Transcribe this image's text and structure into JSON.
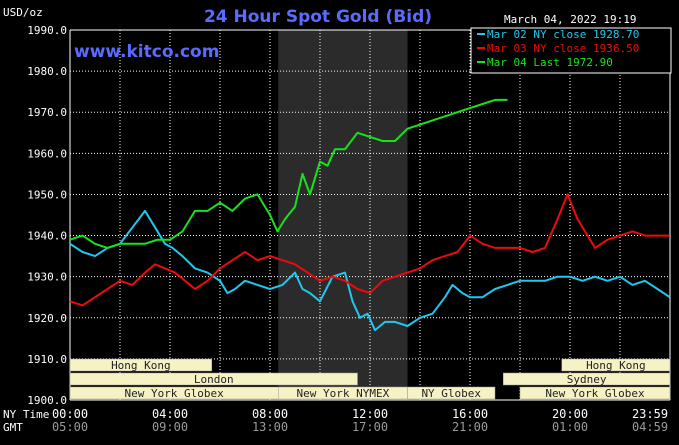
{
  "header": {
    "unit": "USD/oz",
    "title": "24 Hour Spot Gold (Bid)",
    "datetime": "March 04, 2022 19:19",
    "watermark": "www.kitco.com"
  },
  "colors": {
    "background": "#000000",
    "grid": "#ffffff",
    "title": "#5a6bff",
    "nymex_band": "#2b2b2b",
    "market_band": "#f7f2c4",
    "mar02": "#22c7ef",
    "mar03": "#ee0a0a",
    "mar04": "#18e21c"
  },
  "sessions_row1": [
    "Hong Kong",
    "Hong Kong"
  ],
  "sessions_row2": [
    "London",
    "Sydney"
  ],
  "sessions_row3": [
    "New York Globex",
    "New York NYMEX",
    "NY Globex",
    "New York Globex"
  ],
  "axis_labels": {
    "ny_time": "NY Time",
    "gmt": "GMT"
  },
  "chart_data": {
    "type": "line",
    "title": "24 Hour Spot Gold (Bid)",
    "ylabel": "USD/oz",
    "ylim": [
      1900,
      1990
    ],
    "xlim": [
      0,
      24
    ],
    "y_ticks": [
      "1900.0",
      "1910.0",
      "1920.0",
      "1930.0",
      "1940.0",
      "1950.0",
      "1960.0",
      "1970.0",
      "1980.0",
      "1990.0"
    ],
    "x_ticks_ny": [
      "00:00",
      "04:00",
      "08:00",
      "12:00",
      "16:00",
      "20:00",
      "23:59"
    ],
    "x_ticks_gmt": [
      "05:00",
      "09:00",
      "13:00",
      "17:00",
      "21:00",
      "01:00",
      "04:59"
    ],
    "grid": true,
    "legend_position": "top-right",
    "legend": [
      "Mar 02 NY close 1928.70",
      "Mar 03 NY close 1936.50",
      "Mar 04 Last 1972.90"
    ],
    "series": [
      {
        "name": "Mar 02 NY close 1928.70",
        "x": [
          0,
          0.5,
          1,
          1.5,
          2,
          2.5,
          3,
          3.4,
          3.8,
          4.1,
          4.5,
          5,
          5.5,
          6,
          6.3,
          6.6,
          7,
          7.5,
          8,
          8.5,
          9,
          9.3,
          9.6,
          10,
          10.5,
          11,
          11.3,
          11.6,
          11.9,
          12.2,
          12.6,
          13,
          13.5,
          14,
          14.5,
          15,
          15.3,
          15.7,
          16,
          16.5,
          17,
          17.5,
          18,
          18.5,
          19,
          19.5,
          20,
          20.5,
          21,
          21.5,
          22,
          22.5,
          23,
          23.5,
          23.99
        ],
        "values": [
          1938,
          1936,
          1935,
          1937,
          1938,
          1942,
          1946,
          1942,
          1938,
          1937,
          1935,
          1932,
          1931,
          1929,
          1926,
          1927,
          1929,
          1928,
          1927,
          1928,
          1931,
          1927,
          1926,
          1924,
          1930,
          1931,
          1924,
          1920,
          1921,
          1917,
          1919,
          1919,
          1918,
          1920,
          1921,
          1925,
          1928,
          1926,
          1925,
          1925,
          1927,
          1928,
          1929,
          1929,
          1929,
          1930,
          1930,
          1929,
          1930,
          1929,
          1930,
          1928,
          1929,
          1927,
          1925
        ]
      },
      {
        "name": "Mar 03 NY close 1936.50",
        "x": [
          0,
          0.5,
          1,
          1.5,
          2,
          2.5,
          3,
          3.4,
          3.8,
          4.2,
          4.6,
          5,
          5.5,
          6,
          6.5,
          7,
          7.5,
          8,
          8.5,
          9,
          9.5,
          10,
          10.5,
          11,
          11.5,
          12,
          12.5,
          13,
          13.5,
          14,
          14.5,
          15,
          15.5,
          16,
          16.5,
          17,
          17.5,
          18,
          18.5,
          19,
          19.5,
          19.9,
          20.3,
          20.6,
          21,
          21.5,
          22,
          22.5,
          23,
          23.5,
          23.99
        ],
        "values": [
          1924,
          1923,
          1925,
          1927,
          1929,
          1928,
          1931,
          1933,
          1932,
          1931,
          1929,
          1927,
          1929,
          1932,
          1934,
          1936,
          1934,
          1935,
          1934,
          1933,
          1931,
          1929,
          1930,
          1929,
          1927,
          1926,
          1929,
          1930,
          1931,
          1932,
          1934,
          1935,
          1936,
          1940,
          1938,
          1937,
          1937,
          1937,
          1936,
          1937,
          1944,
          1950,
          1944,
          1941,
          1937,
          1939,
          1940,
          1941,
          1940,
          1940,
          1940
        ]
      },
      {
        "name": "Mar 04 Last 1972.90",
        "x": [
          0,
          0.5,
          1,
          1.5,
          2,
          2.5,
          3,
          3.5,
          4,
          4.5,
          5,
          5.5,
          6,
          6.5,
          7,
          7.5,
          8,
          8.3,
          8.6,
          9,
          9.3,
          9.6,
          10,
          10.3,
          10.6,
          11,
          11.5,
          12,
          12.5,
          13,
          13.5,
          14,
          14.5,
          15,
          15.5,
          16,
          16.5,
          17,
          17.5
        ],
        "values": [
          1939,
          1940,
          1938,
          1937,
          1938,
          1938,
          1938,
          1939,
          1939,
          1941,
          1946,
          1946,
          1948,
          1946,
          1949,
          1950,
          1945,
          1941,
          1944,
          1947,
          1955,
          1950,
          1958,
          1957,
          1961,
          1961,
          1965,
          1964,
          1963,
          1963,
          1966,
          1967,
          1968,
          1969,
          1970,
          1971,
          1972,
          1973,
          1973
        ]
      }
    ]
  }
}
